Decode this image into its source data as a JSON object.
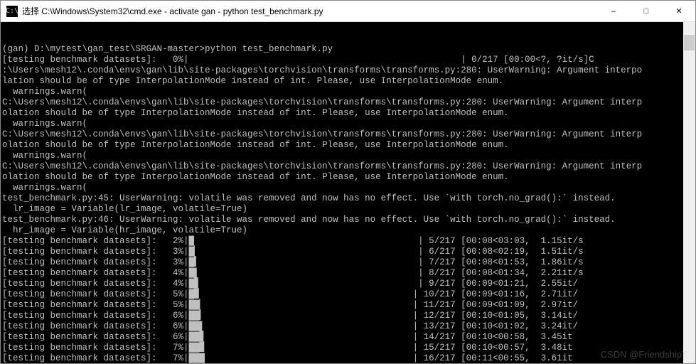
{
  "window": {
    "icon_glyph": "C:\\",
    "title": "选择 C:\\Windows\\System32\\cmd.exe - activate  gan - python  test_benchmark.py"
  },
  "terminal": {
    "text_color": "#c0c0c0",
    "background_color": "#000000",
    "lines": [
      "(gan) D:\\mytest\\gan_test\\SRGAN-master>python test_benchmark.py",
      "[testing benchmark datasets]:   0%|                                                   | 0/217 [00:00<?, ?it/s]C",
      ":\\Users\\mesh12\\.conda\\envs\\gan\\lib\\site-packages\\torchvision\\transforms\\transforms.py:280: UserWarning: Argument interpo",
      "lation should be of type InterpolationMode instead of int. Please, use InterpolationMode enum.",
      "  warnings.warn(",
      "C:\\Users\\mesh12\\.conda\\envs\\gan\\lib\\site-packages\\torchvision\\transforms\\transforms.py:280: UserWarning: Argument interp",
      "olation should be of type InterpolationMode instead of int. Please, use InterpolationMode enum.",
      "  warnings.warn(",
      "C:\\Users\\mesh12\\.conda\\envs\\gan\\lib\\site-packages\\torchvision\\transforms\\transforms.py:280: UserWarning: Argument interp",
      "olation should be of type InterpolationMode instead of int. Please, use InterpolationMode enum.",
      "  warnings.warn(",
      "C:\\Users\\mesh12\\.conda\\envs\\gan\\lib\\site-packages\\torchvision\\transforms\\transforms.py:280: UserWarning: Argument interp",
      "olation should be of type InterpolationMode instead of int. Please, use InterpolationMode enum.",
      "  warnings.warn(",
      "test_benchmark.py:45: UserWarning: volatile was removed and now has no effect. Use `with torch.no_grad():` instead.",
      "  lr_image = Variable(lr_image, volatile=True)",
      "test_benchmark.py:46: UserWarning: volatile was removed and now has no effect. Use `with torch.no_grad():` instead.",
      "  hr_image = Variable(hr_image, volatile=True)",
      "[testing benchmark datasets]:   2%|█                                          | 5/217 [00:08<03:03,  1.15it/s",
      "[testing benchmark datasets]:   3%|█▏                                         | 6/217 [00:08<02:19,  1.51it/s",
      "[testing benchmark datasets]:   3%|█▍                                         | 7/217 [00:08<01:53,  1.86it/s",
      "[testing benchmark datasets]:   4%|█▌                                         | 8/217 [00:08<01:34,  2.21it/s",
      "[testing benchmark datasets]:   4%|█▊                                         | 9/217 [00:09<01:21,  2.55it/",
      "[testing benchmark datasets]:   5%|█▉                                        | 10/217 [00:09<01:16,  2.71it/",
      "[testing benchmark datasets]:   5%|██▏                                       | 11/217 [00:09<01:09,  2.97it/",
      "[testing benchmark datasets]:   6%|██▎                                       | 12/217 [00:10<01:05,  3.14it/",
      "[testing benchmark datasets]:   6%|██▌                                       | 13/217 [00:10<01:02,  3.24it/",
      "[testing benchmark datasets]:   6%|██▊                                       | 14/217 [00:10<00:58,  3.45it",
      "[testing benchmark datasets]:   7%|██▉                                       | 15/217 [00:10<00:57,  3.48it",
      "[testing benchmark datasets]:   7%|███                                       | 16/217 [00:11<00:55,  3.61it"
    ]
  },
  "watermark": "CSDN @FriendshipT"
}
